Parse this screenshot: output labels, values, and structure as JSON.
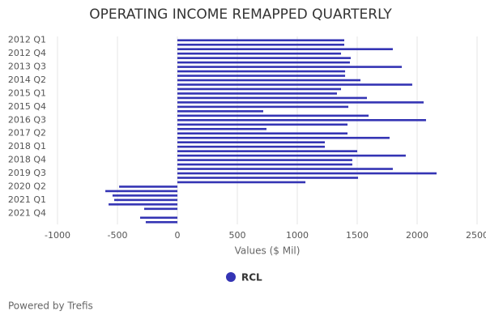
{
  "chart_data": {
    "type": "bar",
    "orientation": "horizontal",
    "title": "OPERATING INCOME REMAPPED QUARTERLY",
    "x_label": "Values ($ Mil)",
    "categories": [
      "2012 Q1",
      null,
      null,
      "2012 Q4",
      null,
      null,
      "2013 Q3",
      null,
      null,
      "2014 Q2",
      null,
      null,
      "2015 Q1",
      null,
      null,
      "2015 Q4",
      null,
      null,
      "2016 Q3",
      null,
      null,
      "2017 Q2",
      null,
      null,
      "2018 Q1",
      null,
      null,
      "2018 Q4",
      null,
      null,
      "2019 Q3",
      null,
      null,
      "2020 Q2",
      null,
      null,
      "2021 Q1",
      null,
      null,
      "2021 Q4",
      null,
      null
    ],
    "series": [
      {
        "name": "RCL",
        "color": "#3434b4",
        "values": [
          1392,
          1392,
          1797,
          1365,
          1446,
          1439,
          1872,
          1399,
          1399,
          1527,
          1959,
          1365,
          1331,
          1581,
          2054,
          1426,
          716,
          1595,
          2074,
          1419,
          743,
          1419,
          1770,
          1230,
          1230,
          1500,
          1905,
          1459,
          1459,
          1797,
          2162,
          1507,
          1068,
          -486,
          -601,
          -541,
          -527,
          -574,
          -277,
          null,
          -311,
          -264
        ]
      }
    ],
    "xlim": [
      -1000,
      2500
    ],
    "xticks": [
      -1000,
      -500,
      0,
      500,
      1000,
      1500,
      2000,
      2500
    ],
    "grid": true,
    "legend": "bottom",
    "footer": "Powered by Trefis"
  }
}
